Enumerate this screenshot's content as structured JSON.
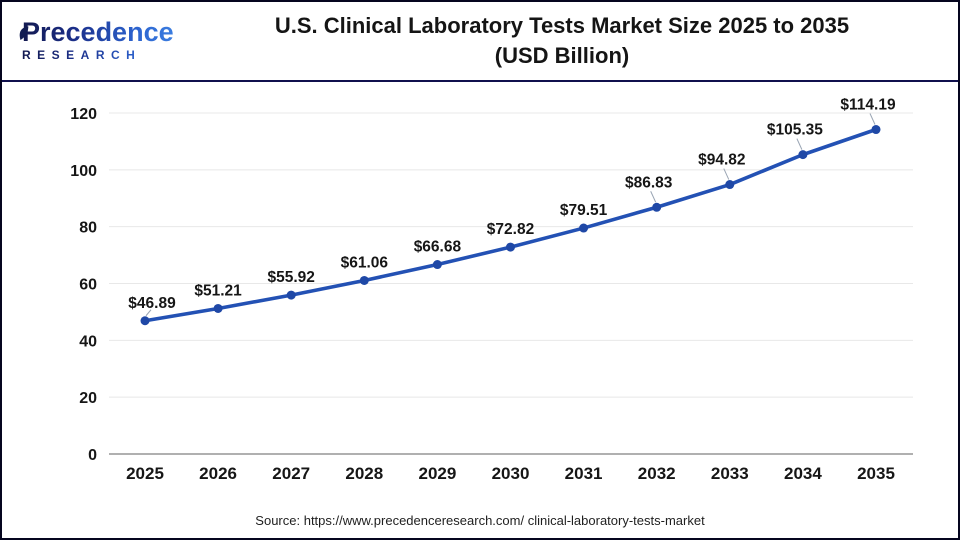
{
  "header": {
    "logo": {
      "line1": "Precedence",
      "line2": "RESEARCH"
    },
    "title_line1": "U.S. Clinical Laboratory Tests Market Size 2025 to 2035",
    "title_line2": "(USD Billion)"
  },
  "footer": {
    "source": "Source: https://www.precedenceresearch.com/ clinical-laboratory-tests-market"
  },
  "chart_data": {
    "type": "line",
    "title": "U.S. Clinical Laboratory Tests Market Size 2025 to 2035 (USD Billion)",
    "categories": [
      "2025",
      "2026",
      "2027",
      "2028",
      "2029",
      "2030",
      "2031",
      "2032",
      "2033",
      "2034",
      "2035"
    ],
    "values": [
      46.89,
      51.21,
      55.92,
      61.06,
      66.68,
      72.82,
      79.51,
      86.83,
      94.82,
      105.35,
      114.19
    ],
    "labels": [
      "$46.89",
      "$51.21",
      "$55.92",
      "$61.06",
      "$66.68",
      "$72.82",
      "$79.51",
      "$86.83",
      "$94.82",
      "$105.35",
      "$114.19"
    ],
    "unit": "USD Billion",
    "y_ticks": [
      0,
      20,
      40,
      60,
      80,
      100,
      120
    ],
    "ylim": [
      0,
      120
    ],
    "grid": "horizontal",
    "legend": "none",
    "callout_indices": [
      0,
      7,
      8,
      9,
      10
    ],
    "colors": {
      "line": "#2351b4",
      "marker": "#1f48a6",
      "grid": "#e8e8e8",
      "axis": "#b0b0b0",
      "label": "#161616",
      "leader": "#9aa5b4",
      "divider": "#10104d"
    }
  }
}
